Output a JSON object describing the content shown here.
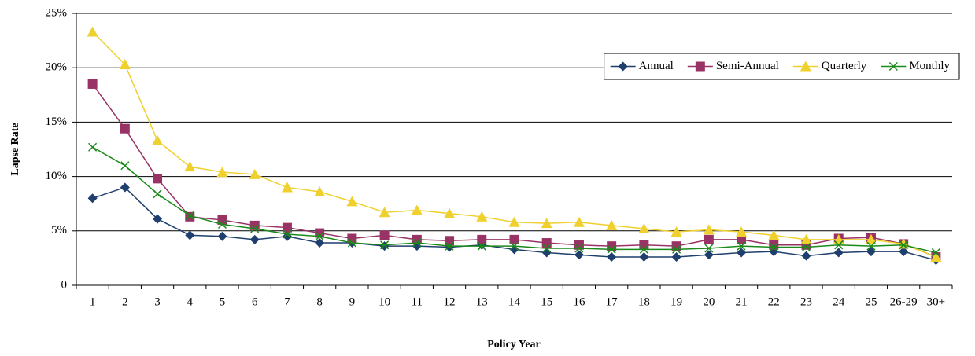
{
  "chart_data": {
    "type": "line",
    "x_label": "Policy Year",
    "y_label": "Lapse Rate",
    "categories": [
      "1",
      "2",
      "3",
      "4",
      "5",
      "6",
      "7",
      "8",
      "9",
      "10",
      "11",
      "12",
      "13",
      "14",
      "15",
      "16",
      "17",
      "18",
      "19",
      "20",
      "21",
      "22",
      "23",
      "24",
      "25",
      "26-29",
      "30+"
    ],
    "series": [
      {
        "name": "Annual",
        "color": "#1f3f6e",
        "marker": "diamond",
        "values": [
          8.0,
          9.0,
          6.1,
          4.6,
          4.5,
          4.2,
          4.5,
          3.9,
          3.9,
          3.6,
          3.6,
          3.5,
          3.7,
          3.3,
          3.0,
          2.8,
          2.6,
          2.6,
          2.6,
          2.8,
          3.0,
          3.1,
          2.7,
          3.0,
          3.1,
          3.1,
          2.3
        ]
      },
      {
        "name": "Semi-Annual",
        "color": "#993366",
        "marker": "square",
        "values": [
          18.5,
          14.4,
          9.8,
          6.3,
          6.0,
          5.5,
          5.3,
          4.8,
          4.3,
          4.6,
          4.2,
          4.1,
          4.2,
          4.2,
          3.9,
          3.7,
          3.6,
          3.7,
          3.6,
          4.2,
          4.2,
          3.7,
          3.7,
          4.3,
          4.4,
          3.8,
          2.6
        ]
      },
      {
        "name": "Quarterly",
        "color": "#f0d02c",
        "marker": "triangle",
        "values": [
          23.3,
          20.3,
          13.3,
          10.9,
          10.4,
          10.2,
          9.0,
          8.6,
          7.7,
          6.7,
          6.9,
          6.6,
          6.3,
          5.8,
          5.7,
          5.8,
          5.5,
          5.2,
          4.9,
          5.1,
          4.9,
          4.6,
          4.2,
          4.2,
          4.2,
          3.8,
          2.6
        ]
      },
      {
        "name": "Monthly",
        "color": "#1a8a1a",
        "marker": "x",
        "values": [
          12.7,
          11.0,
          8.4,
          6.4,
          5.6,
          5.2,
          4.7,
          4.5,
          3.9,
          3.7,
          3.9,
          3.6,
          3.6,
          3.6,
          3.4,
          3.4,
          3.3,
          3.3,
          3.3,
          3.4,
          3.6,
          3.5,
          3.5,
          3.7,
          3.6,
          3.7,
          3.0
        ]
      }
    ],
    "ylim": [
      0,
      25
    ],
    "yticks": [
      0,
      {
        "value": 5,
        "label": "5%"
      },
      {
        "value": 10,
        "label": "10%"
      },
      {
        "value": 15,
        "label": "15%"
      },
      {
        "value": 20,
        "label": "20%"
      },
      {
        "value": 25,
        "label": "25%"
      }
    ],
    "grid": true,
    "legend": "upper right"
  }
}
